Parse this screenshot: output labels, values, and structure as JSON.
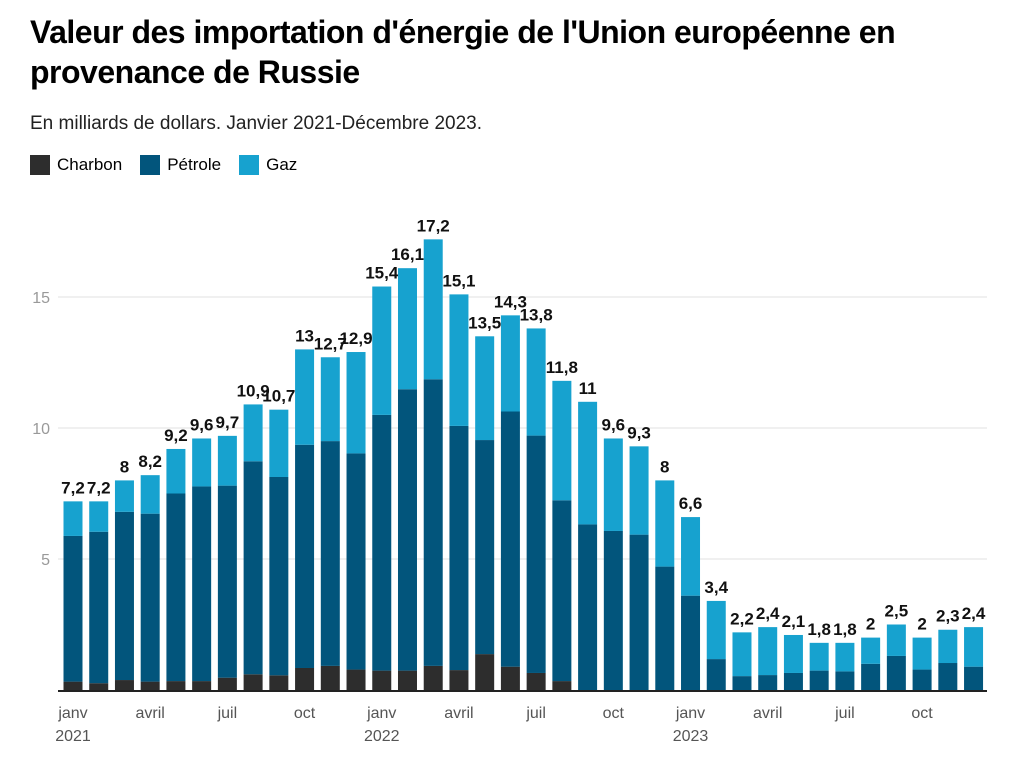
{
  "chart_data": {
    "type": "bar",
    "stacked": true,
    "title": "Valeur des importation d'énergie de l'Union européenne en provenance de Russie",
    "subtitle": "En milliards de dollars. Janvier 2021-Décembre 2023.",
    "ylim": [
      0,
      17.5
    ],
    "yticks": [
      5,
      10,
      15
    ],
    "grid": true,
    "legend_position": "top-left",
    "x_tick_labels": [
      {
        "index": 0,
        "label": "janv",
        "year": "2021"
      },
      {
        "index": 3,
        "label": "avril",
        "year": ""
      },
      {
        "index": 6,
        "label": "juil",
        "year": ""
      },
      {
        "index": 9,
        "label": "oct",
        "year": ""
      },
      {
        "index": 12,
        "label": "janv",
        "year": "2022"
      },
      {
        "index": 15,
        "label": "avril",
        "year": ""
      },
      {
        "index": 18,
        "label": "juil",
        "year": ""
      },
      {
        "index": 21,
        "label": "oct",
        "year": ""
      },
      {
        "index": 24,
        "label": "janv",
        "year": "2023"
      },
      {
        "index": 27,
        "label": "avril",
        "year": ""
      },
      {
        "index": 30,
        "label": "juil",
        "year": ""
      },
      {
        "index": 33,
        "label": "oct",
        "year": ""
      }
    ],
    "totals_labels": [
      "7,2",
      "7,2",
      "8",
      "8,2",
      "9,2",
      "9,6",
      "9,7",
      "10,9",
      "10,7",
      "13",
      "12,7",
      "12,9",
      "15,4",
      "16,1",
      "17,2",
      "15,1",
      "13,5",
      "14,3",
      "13,8",
      "11,8",
      "11",
      "9,6",
      "9,3",
      "8",
      "6,6",
      "3,4",
      "2,2",
      "2,4",
      "2,1",
      "1,8",
      "1,8",
      "2",
      "2,5",
      "2",
      "2,3",
      "2,4"
    ],
    "series": [
      {
        "name": "Charbon",
        "color": "#2d2d2d",
        "values": [
          0.32,
          0.26,
          0.38,
          0.32,
          0.34,
          0.34,
          0.47,
          0.6,
          0.56,
          0.84,
          0.92,
          0.78,
          0.74,
          0.74,
          0.92,
          0.76,
          1.37,
          0.89,
          0.65,
          0.34,
          0,
          0,
          0,
          0,
          0,
          0,
          0,
          0,
          0,
          0,
          0,
          0,
          0,
          0,
          0,
          0
        ]
      },
      {
        "name": "Pétrole",
        "color": "#02557c",
        "values": [
          5.56,
          5.78,
          6.42,
          6.41,
          7.16,
          7.43,
          7.33,
          8.13,
          7.57,
          8.52,
          8.58,
          8.25,
          9.76,
          10.74,
          10.94,
          9.32,
          8.17,
          9.74,
          9.06,
          6.9,
          6.32,
          6.07,
          5.93,
          4.71,
          3.6,
          1.18,
          0.53,
          0.57,
          0.65,
          0.74,
          0.71,
          1.0,
          1.3,
          0.78,
          1.03,
          0.89
        ]
      },
      {
        "name": "Gaz",
        "color": "#17a2cf",
        "values": [
          1.32,
          1.16,
          1.2,
          1.47,
          1.7,
          1.83,
          1.9,
          2.17,
          2.57,
          3.64,
          3.2,
          3.87,
          4.9,
          4.62,
          5.34,
          5.02,
          3.96,
          3.67,
          4.09,
          4.56,
          4.68,
          3.53,
          3.37,
          3.29,
          3.0,
          2.22,
          1.67,
          1.83,
          1.45,
          1.06,
          1.09,
          1.0,
          1.2,
          1.22,
          1.27,
          1.51
        ]
      }
    ]
  }
}
